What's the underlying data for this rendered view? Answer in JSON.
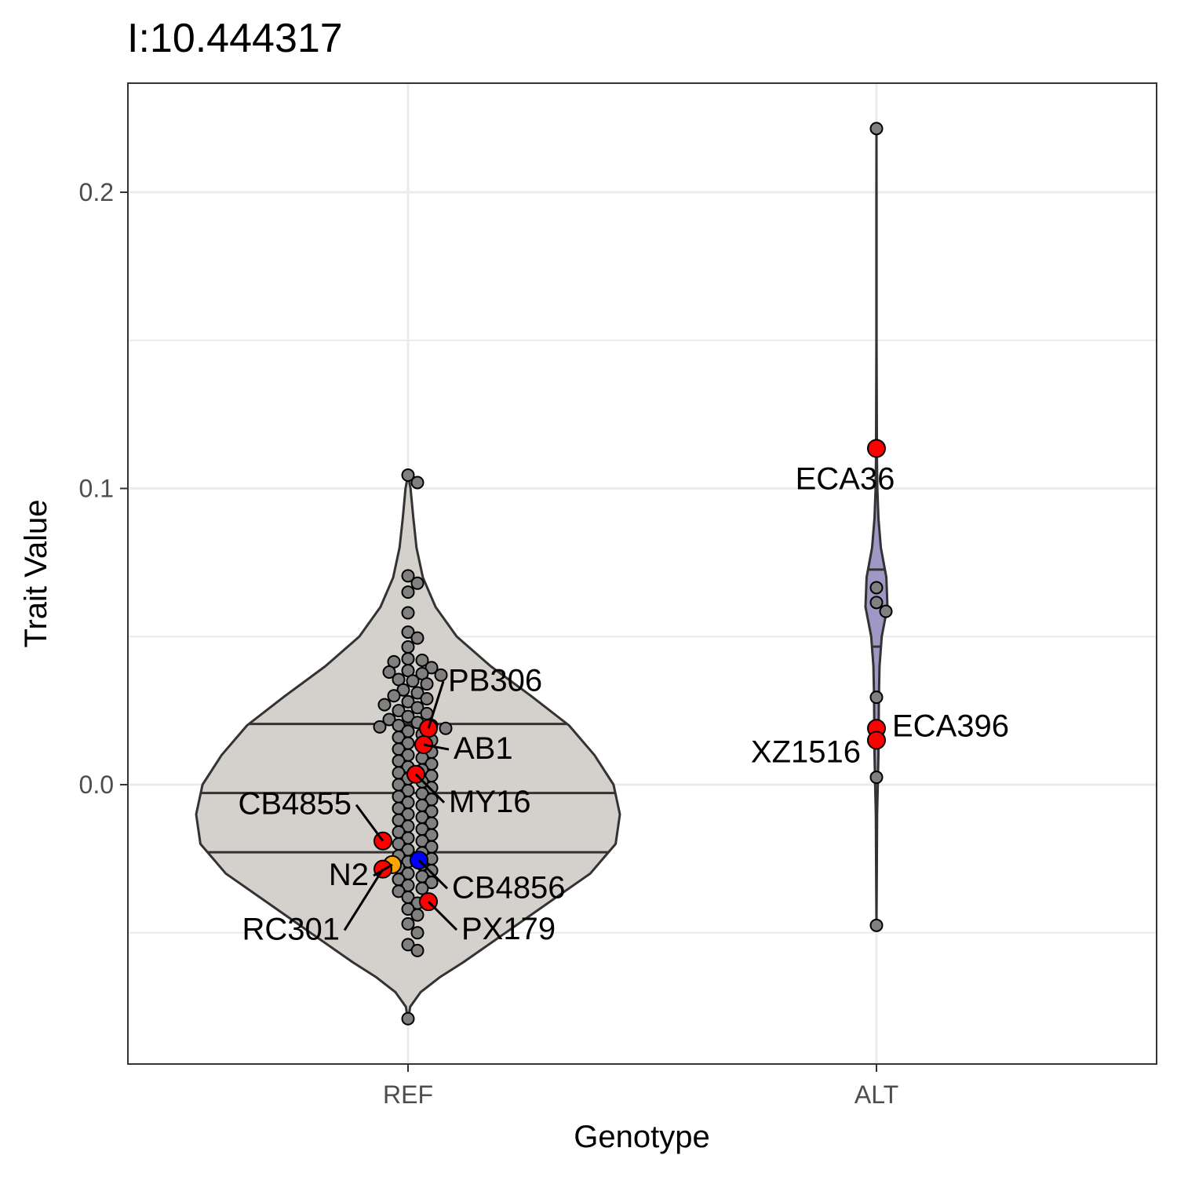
{
  "chart_data": {
    "type": "violin",
    "title": "I:10.444317",
    "xlabel": "Genotype",
    "ylabel": "Trait Value",
    "categories": [
      "REF",
      "ALT"
    ],
    "ylim": [
      -0.094,
      0.236
    ],
    "yticks": [
      0.0,
      0.1,
      0.2
    ],
    "ytick_labels": [
      "0.0",
      "0.1",
      "0.2"
    ],
    "grid": true,
    "colors": {
      "REF_violin": "#d4d0cb",
      "ALT_violin": "#9f98c4",
      "point": "#808080",
      "highlight": "#ff0000",
      "N2": "#ffa500",
      "CB4856": "#0000ff",
      "outline": "#333333"
    },
    "violins": [
      {
        "category": "REF",
        "quantiles": [
          -0.0228,
          -0.0028,
          0.0205
        ],
        "density": [
          [
            -0.08,
            0.0
          ],
          [
            -0.075,
            0.01
          ],
          [
            -0.07,
            0.06
          ],
          [
            -0.065,
            0.15
          ],
          [
            -0.06,
            0.26
          ],
          [
            -0.05,
            0.46
          ],
          [
            -0.04,
            0.66
          ],
          [
            -0.03,
            0.86
          ],
          [
            -0.02,
            0.98
          ],
          [
            -0.01,
            1.0
          ],
          [
            0.0,
            0.97
          ],
          [
            0.01,
            0.88
          ],
          [
            0.02,
            0.76
          ],
          [
            0.03,
            0.58
          ],
          [
            0.04,
            0.39
          ],
          [
            0.05,
            0.23
          ],
          [
            0.06,
            0.13
          ],
          [
            0.07,
            0.07
          ],
          [
            0.08,
            0.04
          ],
          [
            0.09,
            0.025
          ],
          [
            0.1,
            0.012
          ],
          [
            0.1045,
            0.0
          ]
        ]
      },
      {
        "category": "ALT",
        "quantiles": [
          0.0466,
          0.0726
        ],
        "density": [
          [
            -0.0475,
            0.0
          ],
          [
            -0.03,
            0.03
          ],
          [
            -0.01,
            0.06
          ],
          [
            0.0,
            0.12
          ],
          [
            0.01,
            0.18
          ],
          [
            0.02,
            0.2
          ],
          [
            0.03,
            0.22
          ],
          [
            0.04,
            0.28
          ],
          [
            0.05,
            0.48
          ],
          [
            0.06,
            1.0
          ],
          [
            0.07,
            0.9
          ],
          [
            0.08,
            0.4
          ],
          [
            0.09,
            0.18
          ],
          [
            0.1,
            0.08
          ],
          [
            0.11,
            0.04
          ],
          [
            0.15,
            0.01
          ],
          [
            0.2,
            0.01
          ],
          [
            0.222,
            0.0
          ]
        ]
      }
    ],
    "points": {
      "ALT": [
        0.2215,
        0.0665,
        0.0615,
        0.0585,
        0.0295,
        0.0025,
        -0.0475
      ],
      "REF": [
        0.1045,
        0.102,
        0.0705,
        0.068,
        0.065,
        0.058,
        0.0515,
        0.0495,
        0.0465,
        0.0425,
        0.042,
        0.0415,
        0.0395,
        0.0385,
        0.038,
        0.0375,
        0.037,
        0.0355,
        0.035,
        0.034,
        0.032,
        0.031,
        0.03,
        0.029,
        0.028,
        0.027,
        0.026,
        0.025,
        0.024,
        0.023,
        0.022,
        0.021,
        0.02,
        0.02,
        0.0195,
        0.019,
        0.018,
        0.017,
        0.016,
        0.015,
        0.014,
        0.013,
        0.012,
        0.011,
        0.01,
        0.009,
        0.008,
        0.007,
        0.006,
        0.005,
        0.004,
        0.003,
        0.002,
        0.001,
        0.0,
        -0.001,
        -0.002,
        -0.003,
        -0.004,
        -0.005,
        -0.006,
        -0.007,
        -0.008,
        -0.009,
        -0.01,
        -0.011,
        -0.012,
        -0.013,
        -0.014,
        -0.015,
        -0.016,
        -0.017,
        -0.018,
        -0.019,
        -0.02,
        -0.021,
        -0.022,
        -0.023,
        -0.024,
        -0.025,
        -0.026,
        -0.027,
        -0.028,
        -0.029,
        -0.03,
        -0.031,
        -0.032,
        -0.033,
        -0.034,
        -0.035,
        -0.036,
        -0.038,
        -0.04,
        -0.042,
        -0.044,
        -0.047,
        -0.05,
        -0.054,
        -0.056,
        -0.079
      ]
    },
    "highlighted": [
      {
        "strain": "PB306",
        "genotype": "REF",
        "value": 0.019,
        "color": "#ff0000",
        "label_side": "upper-right"
      },
      {
        "strain": "AB1",
        "genotype": "REF",
        "value": 0.0135,
        "color": "#ff0000",
        "label_side": "right"
      },
      {
        "strain": "MY16",
        "genotype": "REF",
        "value": 0.0035,
        "color": "#ff0000",
        "label_side": "lower-right"
      },
      {
        "strain": "CB4855",
        "genotype": "REF",
        "value": -0.019,
        "color": "#ff0000",
        "label_side": "upper-left"
      },
      {
        "strain": "N2",
        "genotype": "REF",
        "value": -0.027,
        "color": "#ffa500",
        "label_side": "left"
      },
      {
        "strain": "RC301",
        "genotype": "REF",
        "value": -0.0285,
        "color": "#ff0000",
        "label_side": "lower-left"
      },
      {
        "strain": "CB4856",
        "genotype": "REF",
        "value": -0.0255,
        "color": "#0000ff",
        "label_side": "lower-right"
      },
      {
        "strain": "PX179",
        "genotype": "REF",
        "value": -0.0395,
        "color": "#ff0000",
        "label_side": "lower-right"
      },
      {
        "strain": "ECA36",
        "genotype": "ALT",
        "value": 0.1135,
        "color": "#ff0000",
        "label_side": "below"
      },
      {
        "strain": "ECA396",
        "genotype": "ALT",
        "value": 0.019,
        "color": "#ff0000",
        "label_side": "right"
      },
      {
        "strain": "XZ1516",
        "genotype": "ALT",
        "value": 0.015,
        "color": "#ff0000",
        "label_side": "left"
      }
    ]
  }
}
